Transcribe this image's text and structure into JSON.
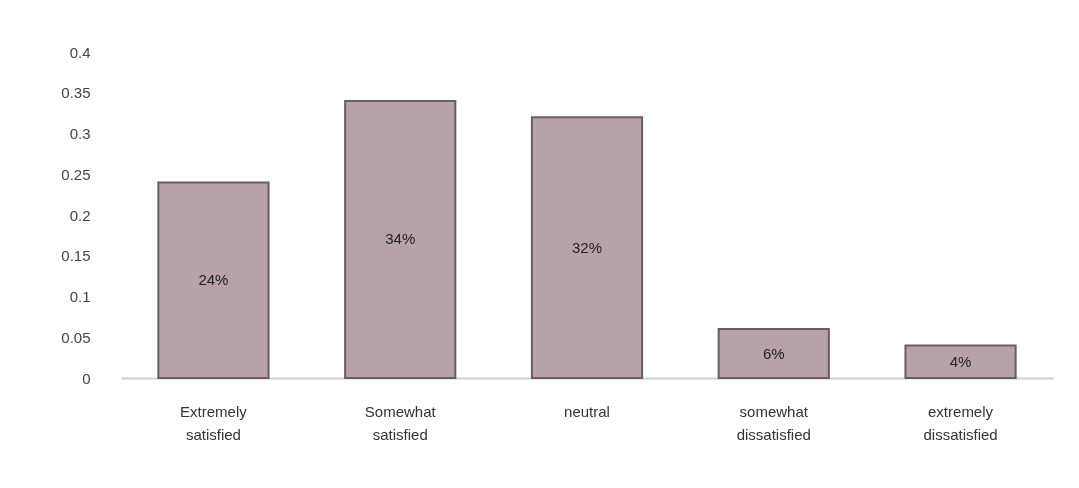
{
  "chart_data": {
    "type": "bar",
    "categories": [
      "Extremely satisfied",
      "Somewhat satisfied",
      "neutral",
      "somewhat dissatisfied",
      "extremely dissatisfied"
    ],
    "values": [
      0.24,
      0.34,
      0.32,
      0.06,
      0.04
    ],
    "value_labels": [
      "24%",
      "34%",
      "32%",
      "6%",
      "4%"
    ],
    "color": "#b8a2aa",
    "ylim": [
      0,
      0.4
    ],
    "yticks": [
      0,
      0.05,
      0.1,
      0.15,
      0.2,
      0.25,
      0.3,
      0.35,
      0.4
    ],
    "grid": false
  }
}
